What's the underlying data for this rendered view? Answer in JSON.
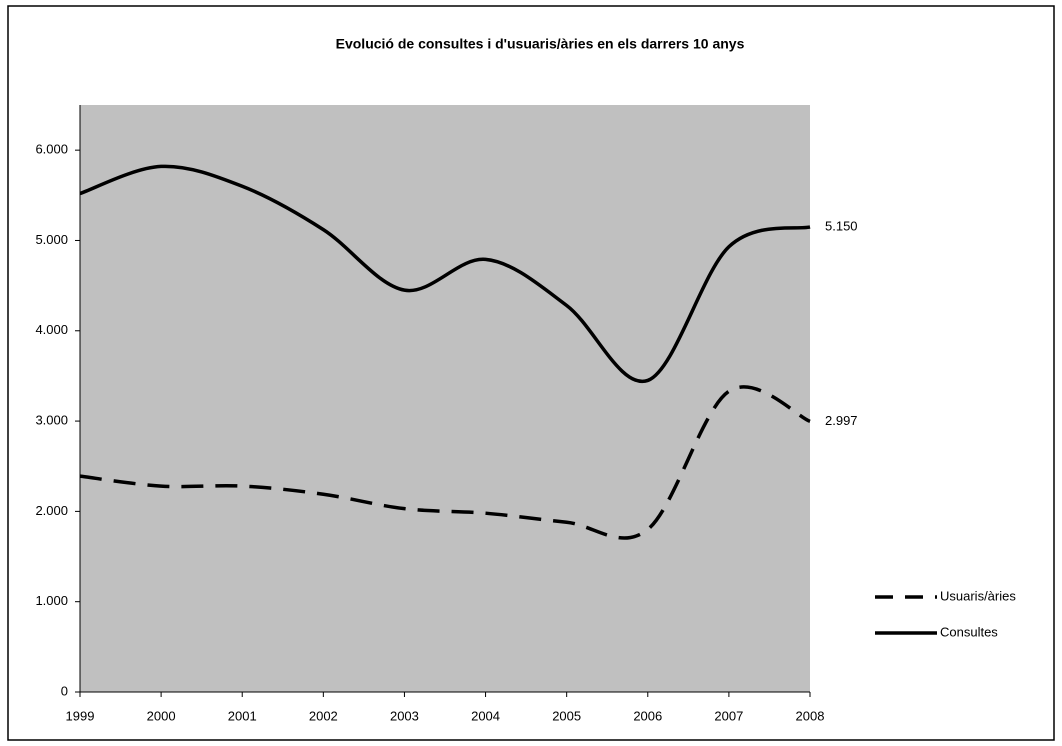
{
  "chart_data": {
    "type": "line",
    "title": "Evolució de consultes i d'usuaris/àries en els darrers 10 anys",
    "categories": [
      "1999",
      "2000",
      "2001",
      "2002",
      "2003",
      "2004",
      "2005",
      "2006",
      "2007",
      "2008"
    ],
    "series": [
      {
        "name": "Usuaris/àries",
        "color": "#000000",
        "style": "dashed",
        "values": [
          2390,
          2280,
          2280,
          2190,
          2030,
          1980,
          1880,
          1800,
          3330,
          2997
        ],
        "value_labels": [
          null,
          null,
          null,
          null,
          null,
          null,
          null,
          null,
          null,
          "2.997"
        ]
      },
      {
        "name": "Consultes",
        "color": "#000000",
        "style": "solid",
        "values": [
          5520,
          5820,
          5600,
          5120,
          4450,
          4790,
          4280,
          3450,
          4930,
          5150
        ],
        "value_labels": [
          null,
          null,
          null,
          null,
          null,
          null,
          null,
          null,
          null,
          "5.150"
        ]
      }
    ],
    "ylim": [
      0,
      6500
    ],
    "yticks": [
      0,
      {
        "value": 1000,
        "label": "1.000"
      },
      {
        "value": 2000,
        "label": "2.000"
      },
      {
        "value": 3000,
        "label": "3.000"
      },
      {
        "value": 4000,
        "label": "4.000"
      },
      {
        "value": 5000,
        "label": "5.000"
      },
      {
        "value": 6000,
        "label": "6.000"
      }
    ],
    "plot_background": "#c0c0c0",
    "legend": "right"
  }
}
